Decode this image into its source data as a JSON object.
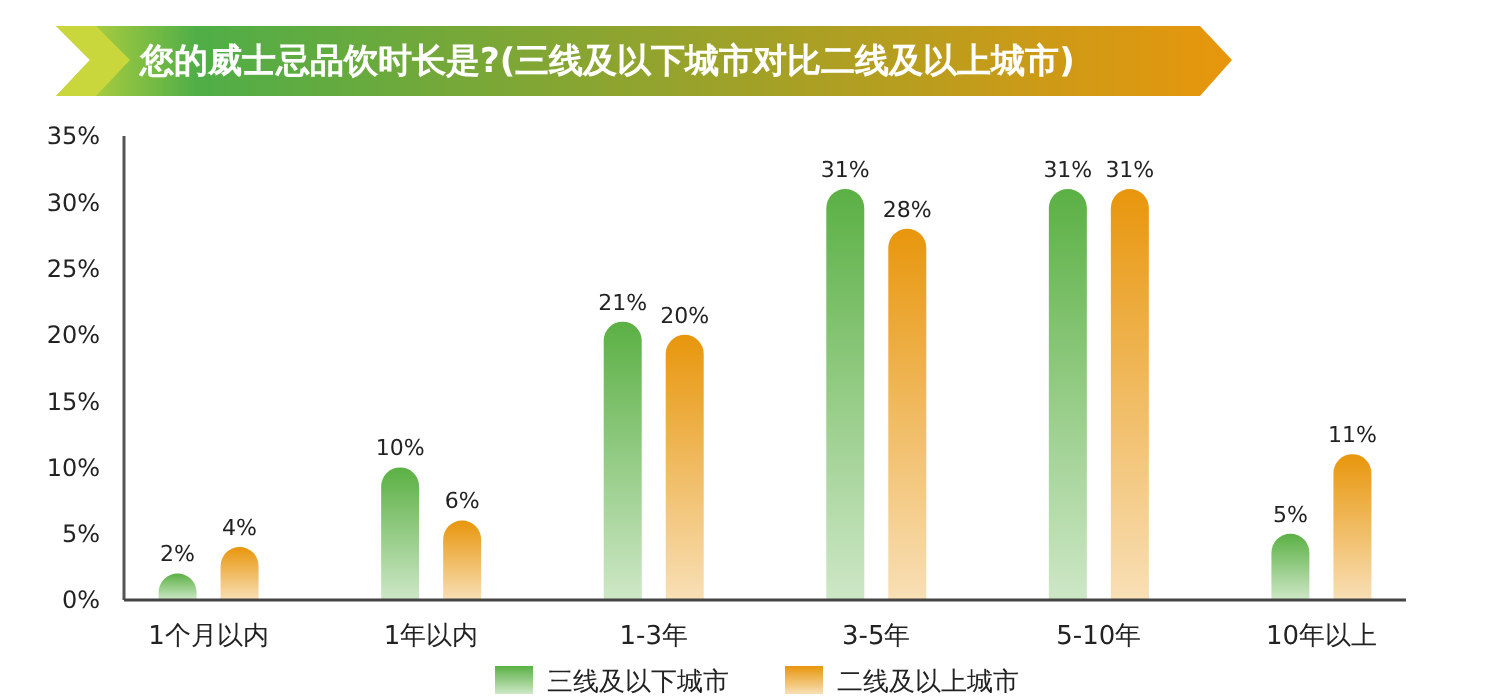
{
  "chart_data": {
    "type": "bar",
    "title": "您的威士忌品饮时长是?(三线及以下城市对比二线及以上城市)",
    "categories": [
      "1个月以内",
      "1年以内",
      "1-3年",
      "3-5年",
      "5-10年",
      "10年以上"
    ],
    "series": [
      {
        "name": "三线及以下城市",
        "color": "#5bb044",
        "values": [
          2,
          10,
          21,
          31,
          31,
          5
        ],
        "value_labels": [
          "2%",
          "10%",
          "21%",
          "31%",
          "31%",
          "5%"
        ]
      },
      {
        "name": "二线及以上城市",
        "color": "#e8960c",
        "values": [
          4,
          6,
          20,
          28,
          31,
          11
        ],
        "value_labels": [
          "4%",
          "6%",
          "20%",
          "28%",
          "31%",
          "11%"
        ]
      }
    ],
    "ylim": [
      0,
      35
    ],
    "yticks": [
      {
        "value": 0,
        "label": "0%"
      },
      {
        "value": 5,
        "label": "5%"
      },
      {
        "value": 10,
        "label": "10%"
      },
      {
        "value": 15,
        "label": "15%"
      },
      {
        "value": 20,
        "label": "20%"
      },
      {
        "value": 25,
        "label": "25%"
      },
      {
        "value": 30,
        "label": "30%"
      },
      {
        "value": 35,
        "label": "35%"
      }
    ],
    "grid": false,
    "legend": "bottom"
  }
}
